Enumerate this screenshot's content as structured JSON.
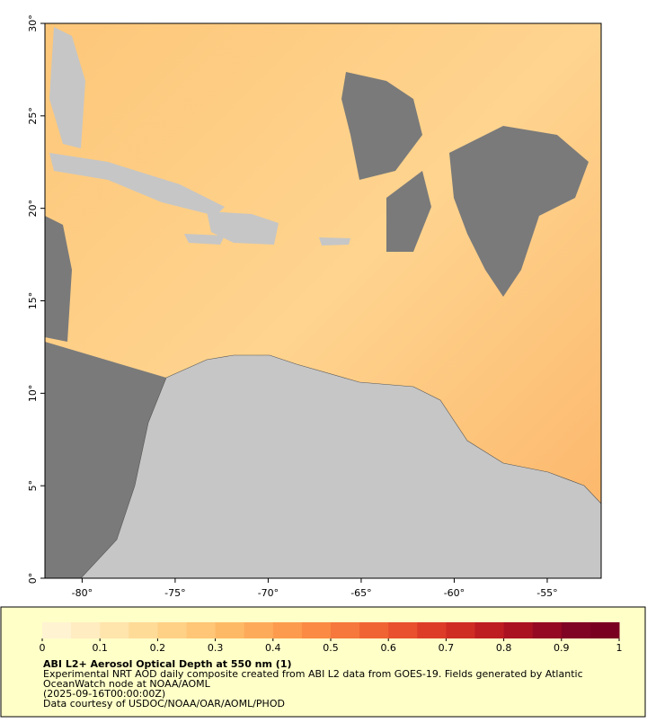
{
  "map": {
    "xlim": [
      -82,
      -52.1
    ],
    "ylim": [
      0,
      30
    ],
    "xticks": [
      {
        "value": -80,
        "label": "-80°"
      },
      {
        "value": -75,
        "label": "-75°"
      },
      {
        "value": -70,
        "label": "-70°"
      },
      {
        "value": -65,
        "label": "-65°"
      },
      {
        "value": -60,
        "label": "-60°"
      },
      {
        "value": -55,
        "label": "-55°"
      }
    ],
    "yticks": [
      {
        "value": 0,
        "label": "0°"
      },
      {
        "value": 5,
        "label": "5°"
      },
      {
        "value": 10,
        "label": "10°"
      },
      {
        "value": 15,
        "label": "15°"
      },
      {
        "value": 20,
        "label": "20°"
      },
      {
        "value": 25,
        "label": "25°"
      },
      {
        "value": 30,
        "label": "30°"
      }
    ]
  },
  "colorbar": {
    "lim": [
      0,
      1
    ],
    "ticks": [
      0,
      0.1,
      0.2,
      0.3,
      0.4,
      0.5,
      0.6,
      0.7,
      0.8,
      0.9,
      1
    ],
    "colors": [
      "#fff3d2",
      "#ffecc0",
      "#ffe4ac",
      "#ffdb98",
      "#ffd186",
      "#fec676",
      "#feb966",
      "#fdab5a",
      "#fc9b4e",
      "#fa8a44",
      "#f6783c",
      "#f06434",
      "#e8502e",
      "#dd3d28",
      "#cf2c24",
      "#be1d22",
      "#aa1222",
      "#950a22",
      "#800424",
      "#7a0022"
    ]
  },
  "caption": {
    "title": "ABI L2+ Aerosol Optical Depth at 550 nm (1)",
    "lines": [
      "Experimental NRT AOD daily composite created from ABI L2 data from GOES-19. Fields generated by Atlantic",
      "OceanWatch node at NOAA/AOML",
      "(2025-09-16T00:00:00Z)",
      "Data courtesy of USDOC/NOAA/OAR/AOML/PHOD"
    ]
  }
}
